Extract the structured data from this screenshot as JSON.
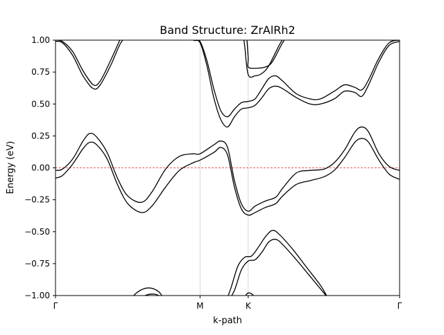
{
  "chart_data": {
    "type": "line",
    "title": "Band Structure: ZrAlRh2",
    "xlabel": "k-path",
    "ylabel": "Energy (eV)",
    "xlim": [
      0,
      1
    ],
    "ylim": [
      -1.0,
      1.0
    ],
    "x_ticks": [
      {
        "label": "Γ",
        "x": 0.0
      },
      {
        "label": "M",
        "x": 0.42
      },
      {
        "label": "K",
        "x": 0.56
      },
      {
        "label": "Γ",
        "x": 1.0
      }
    ],
    "y_ticks": [
      "−1.00",
      "−0.75",
      "−0.50",
      "−0.25",
      "0.00",
      "0.25",
      "0.50",
      "0.75",
      "1.00"
    ],
    "y_tick_values": [
      -1.0,
      -0.75,
      -0.5,
      -0.25,
      0.0,
      0.25,
      0.5,
      0.75,
      1.0
    ],
    "vertical_lines_at": [
      0.42,
      0.56
    ],
    "fermi_level": {
      "y": 0.0,
      "color": "#d62728",
      "style": "dashed"
    },
    "line_color": "#000000",
    "grid": false,
    "series": [
      {
        "points": [
          [
            0.0,
            -0.08
          ],
          [
            0.02,
            -0.06
          ],
          [
            0.05,
            0.03
          ],
          [
            0.08,
            0.15
          ],
          [
            0.1,
            0.2
          ],
          [
            0.12,
            0.18
          ],
          [
            0.15,
            0.07
          ],
          [
            0.18,
            -0.13
          ],
          [
            0.21,
            -0.28
          ],
          [
            0.25,
            -0.35
          ],
          [
            0.28,
            -0.3
          ],
          [
            0.32,
            -0.15
          ],
          [
            0.36,
            -0.02
          ],
          [
            0.4,
            0.04
          ],
          [
            0.42,
            0.06
          ],
          [
            0.46,
            0.12
          ],
          [
            0.48,
            0.16
          ],
          [
            0.5,
            0.1
          ],
          [
            0.52,
            -0.15
          ],
          [
            0.54,
            -0.32
          ],
          [
            0.56,
            -0.37
          ],
          [
            0.58,
            -0.35
          ],
          [
            0.61,
            -0.31
          ],
          [
            0.64,
            -0.28
          ],
          [
            0.66,
            -0.22
          ],
          [
            0.7,
            -0.13
          ],
          [
            0.74,
            -0.1
          ],
          [
            0.78,
            -0.07
          ],
          [
            0.81,
            -0.02
          ],
          [
            0.84,
            0.08
          ],
          [
            0.87,
            0.2
          ],
          [
            0.89,
            0.23
          ],
          [
            0.91,
            0.2
          ],
          [
            0.94,
            0.06
          ],
          [
            0.97,
            -0.05
          ],
          [
            1.0,
            -0.09
          ]
        ]
      },
      {
        "points": [
          [
            0.0,
            -0.02
          ],
          [
            0.02,
            -0.01
          ],
          [
            0.05,
            0.07
          ],
          [
            0.08,
            0.21
          ],
          [
            0.1,
            0.27
          ],
          [
            0.12,
            0.24
          ],
          [
            0.15,
            0.12
          ],
          [
            0.18,
            -0.08
          ],
          [
            0.21,
            -0.22
          ],
          [
            0.25,
            -0.27
          ],
          [
            0.28,
            -0.19
          ],
          [
            0.32,
            -0.01
          ],
          [
            0.36,
            0.09
          ],
          [
            0.4,
            0.11
          ],
          [
            0.42,
            0.11
          ],
          [
            0.46,
            0.18
          ],
          [
            0.48,
            0.21
          ],
          [
            0.5,
            0.16
          ],
          [
            0.52,
            -0.1
          ],
          [
            0.54,
            -0.28
          ],
          [
            0.56,
            -0.34
          ],
          [
            0.58,
            -0.3
          ],
          [
            0.61,
            -0.26
          ],
          [
            0.64,
            -0.23
          ],
          [
            0.66,
            -0.16
          ],
          [
            0.7,
            -0.04
          ],
          [
            0.74,
            -0.02
          ],
          [
            0.78,
            -0.01
          ],
          [
            0.81,
            0.04
          ],
          [
            0.84,
            0.14
          ],
          [
            0.87,
            0.28
          ],
          [
            0.89,
            0.32
          ],
          [
            0.91,
            0.28
          ],
          [
            0.94,
            0.11
          ],
          [
            0.97,
            0.01
          ],
          [
            1.0,
            -0.02
          ]
        ]
      },
      {
        "points": [
          [
            0.0,
            0.99
          ],
          [
            0.02,
            0.98
          ],
          [
            0.05,
            0.88
          ],
          [
            0.08,
            0.72
          ],
          [
            0.11,
            0.62
          ],
          [
            0.13,
            0.65
          ],
          [
            0.16,
            0.8
          ],
          [
            0.19,
            0.98
          ],
          [
            0.215,
            1.05
          ]
        ]
      },
      {
        "points": [
          [
            0.0,
            1.0
          ],
          [
            0.02,
            0.99
          ],
          [
            0.05,
            0.91
          ],
          [
            0.08,
            0.76
          ],
          [
            0.11,
            0.65
          ],
          [
            0.13,
            0.68
          ],
          [
            0.16,
            0.84
          ],
          [
            0.195,
            1.05
          ]
        ]
      },
      {
        "points": [
          [
            0.38,
            1.05
          ],
          [
            0.4,
            1.0
          ],
          [
            0.42,
            0.98
          ],
          [
            0.44,
            0.8
          ],
          [
            0.46,
            0.55
          ],
          [
            0.48,
            0.38
          ],
          [
            0.5,
            0.32
          ],
          [
            0.52,
            0.4
          ],
          [
            0.54,
            0.46
          ],
          [
            0.56,
            0.47
          ],
          [
            0.58,
            0.49
          ],
          [
            0.6,
            0.55
          ],
          [
            0.62,
            0.62
          ],
          [
            0.64,
            0.64
          ],
          [
            0.66,
            0.62
          ],
          [
            0.7,
            0.55
          ],
          [
            0.74,
            0.5
          ],
          [
            0.77,
            0.5
          ],
          [
            0.81,
            0.54
          ],
          [
            0.84,
            0.6
          ],
          [
            0.87,
            0.59
          ],
          [
            0.89,
            0.56
          ],
          [
            0.91,
            0.65
          ],
          [
            0.94,
            0.83
          ],
          [
            0.97,
            0.96
          ],
          [
            1.0,
            0.99
          ]
        ]
      },
      {
        "points": [
          [
            0.38,
            1.06
          ],
          [
            0.4,
            1.01
          ],
          [
            0.42,
            0.99
          ],
          [
            0.44,
            0.84
          ],
          [
            0.46,
            0.62
          ],
          [
            0.48,
            0.45
          ],
          [
            0.5,
            0.4
          ],
          [
            0.52,
            0.46
          ],
          [
            0.54,
            0.51
          ],
          [
            0.56,
            0.52
          ],
          [
            0.58,
            0.54
          ],
          [
            0.6,
            0.62
          ],
          [
            0.62,
            0.7
          ],
          [
            0.64,
            0.72
          ],
          [
            0.66,
            0.68
          ],
          [
            0.7,
            0.58
          ],
          [
            0.74,
            0.54
          ],
          [
            0.77,
            0.54
          ],
          [
            0.81,
            0.6
          ],
          [
            0.84,
            0.65
          ],
          [
            0.87,
            0.63
          ],
          [
            0.89,
            0.61
          ],
          [
            0.91,
            0.69
          ],
          [
            0.94,
            0.86
          ],
          [
            0.97,
            0.98
          ],
          [
            1.0,
            1.0
          ]
        ]
      },
      {
        "points": [
          [
            0.545,
            1.05
          ],
          [
            0.55,
            0.95
          ],
          [
            0.56,
            0.73
          ],
          [
            0.58,
            0.72
          ],
          [
            0.6,
            0.74
          ],
          [
            0.62,
            0.8
          ],
          [
            0.65,
            0.96
          ],
          [
            0.67,
            1.05
          ]
        ]
      },
      {
        "points": [
          [
            0.555,
            1.05
          ],
          [
            0.56,
            0.86
          ],
          [
            0.56,
            0.79
          ],
          [
            0.58,
            0.78
          ],
          [
            0.61,
            0.79
          ],
          [
            0.63,
            0.83
          ],
          [
            0.66,
            0.98
          ],
          [
            0.68,
            1.05
          ]
        ]
      },
      {
        "points": [
          [
            0.5,
            -1.05
          ],
          [
            0.52,
            -0.96
          ],
          [
            0.54,
            -0.8
          ],
          [
            0.56,
            -0.73
          ],
          [
            0.58,
            -0.72
          ],
          [
            0.6,
            -0.66
          ],
          [
            0.62,
            -0.58
          ],
          [
            0.64,
            -0.56
          ],
          [
            0.66,
            -0.6
          ],
          [
            0.7,
            -0.72
          ],
          [
            0.74,
            -0.85
          ],
          [
            0.78,
            -0.98
          ],
          [
            0.8,
            -1.05
          ]
        ]
      },
      {
        "points": [
          [
            0.495,
            -1.05
          ],
          [
            0.51,
            -0.94
          ],
          [
            0.53,
            -0.77
          ],
          [
            0.55,
            -0.7
          ],
          [
            0.57,
            -0.69
          ],
          [
            0.59,
            -0.62
          ],
          [
            0.61,
            -0.54
          ],
          [
            0.63,
            -0.49
          ],
          [
            0.65,
            -0.52
          ],
          [
            0.69,
            -0.64
          ],
          [
            0.73,
            -0.78
          ],
          [
            0.77,
            -0.92
          ],
          [
            0.79,
            -1.01
          ],
          [
            0.8,
            -1.05
          ]
        ]
      },
      {
        "points": [
          [
            0.21,
            -1.05
          ],
          [
            0.24,
            -0.97
          ],
          [
            0.27,
            -0.94
          ],
          [
            0.3,
            -0.97
          ],
          [
            0.32,
            -1.05
          ]
        ]
      },
      {
        "points": [
          [
            0.23,
            -1.05
          ],
          [
            0.26,
            -1.0
          ],
          [
            0.29,
            -0.99
          ],
          [
            0.32,
            -1.03
          ],
          [
            0.33,
            -1.05
          ]
        ]
      },
      {
        "points": [
          [
            0.545,
            -1.05
          ],
          [
            0.555,
            -0.99
          ],
          [
            0.565,
            -0.98
          ],
          [
            0.575,
            -1.0
          ],
          [
            0.585,
            -1.05
          ]
        ]
      }
    ]
  }
}
